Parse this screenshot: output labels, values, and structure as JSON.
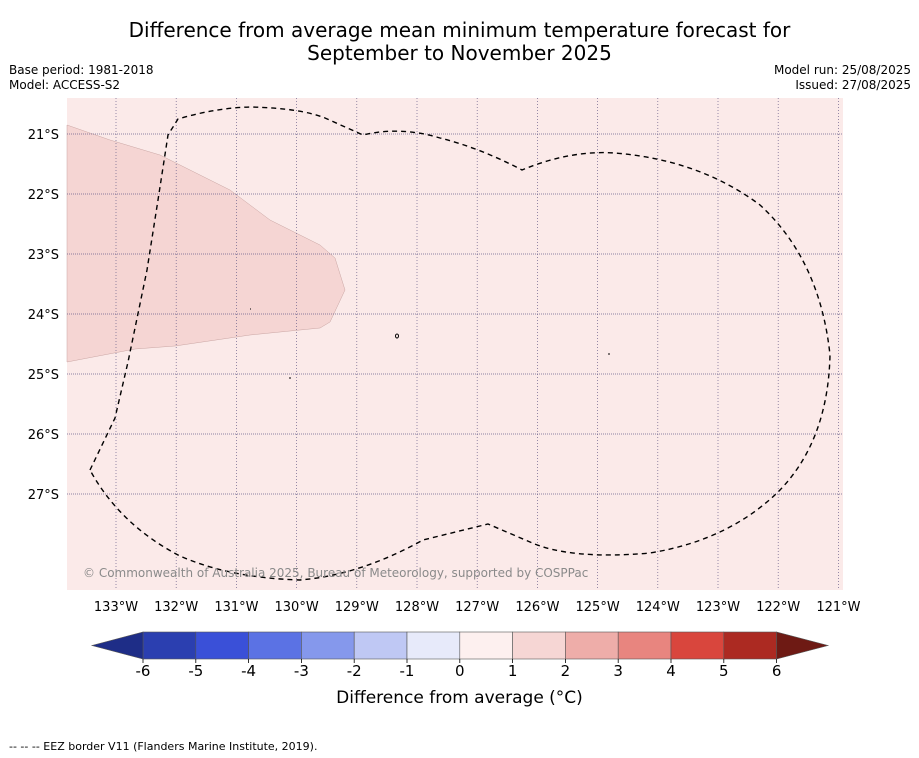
{
  "title_line1": "Difference from average mean minimum temperature forecast for",
  "title_line2": "September to November 2025",
  "base_period": "Base period: 1981-2018",
  "model": "Model: ACCESS-S2",
  "model_run": "Model run: 25/08/2025",
  "issued": "Issued: 27/08/2025",
  "map": {
    "lon_labels": [
      "133°W",
      "132°W",
      "131°W",
      "130°W",
      "129°W",
      "128°W",
      "127°W",
      "126°W",
      "125°W",
      "124°W",
      "123°W",
      "122°W",
      "121°W"
    ],
    "lat_labels": [
      "21°S",
      "22°S",
      "23°S",
      "24°S",
      "25°S",
      "26°S",
      "27°S"
    ],
    "background_class_color": "#fbeae9",
    "warm_region_color": "#f5d5d3",
    "copyright": "© Commonwealth of Australia 2025, Bureau of Meteorology, supported by COSPPac"
  },
  "colorbar": {
    "ticks": [
      "-6",
      "-5",
      "-4",
      "-3",
      "-2",
      "-1",
      "0",
      "1",
      "2",
      "3",
      "4",
      "5",
      "6"
    ],
    "colors": [
      "#2b3fb0",
      "#3a50d8",
      "#5b72e4",
      "#8598ec",
      "#bfc8f4",
      "#e7eafa",
      "#fdf0ef",
      "#f6d6d4",
      "#eeada9",
      "#e8857f",
      "#d9463d",
      "#ac2a22"
    ],
    "under_color": "#1e2d87",
    "over_color": "#6e1a14",
    "label": "Difference from average (°C)"
  },
  "footer": "--  --  -- EEZ border V11 (Flanders Marine Institute, 2019)."
}
